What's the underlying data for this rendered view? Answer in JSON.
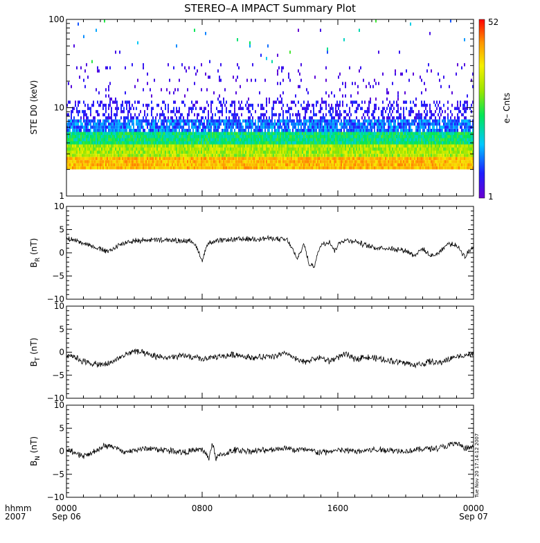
{
  "title": "STEREO–A IMPACT Summary Plot",
  "timestamp": "Tue Nov 20 17:14:12 2007",
  "footer": {
    "left_line1": "hhmm",
    "left_line2": "2007"
  },
  "colors": {
    "line": "#000000",
    "colorbar": [
      "#6a00d0",
      "#1e1eff",
      "#00c8ff",
      "#00e65a",
      "#9be600",
      "#f5f000",
      "#ff9600",
      "#ff0000"
    ]
  },
  "chart_data": [
    {
      "type": "heatmap",
      "ylabel": "STE D0 (keV)",
      "y_scale": "log",
      "ylim": [
        1,
        100
      ],
      "y_ticks": [
        "1",
        "10",
        "100"
      ],
      "colorbar": {
        "label": "e– Cnts",
        "min_label": "1",
        "max_label": "52",
        "range": [
          1,
          52
        ]
      },
      "x_ticks": [
        {
          "hour": 0,
          "line1": "0000",
          "line2": "Sep 06"
        },
        {
          "hour": 8,
          "line1": "0800",
          "line2": ""
        },
        {
          "hour": 16,
          "line1": "1600",
          "line2": ""
        },
        {
          "hour": 24,
          "line1": "0000",
          "line2": "Sep 07"
        }
      ],
      "description_levels": {
        "energy_floor_keV": 2,
        "hot_band_keV": [
          2,
          3
        ],
        "mid_band_keV": [
          3,
          6
        ],
        "sparse_upper_keV": [
          6,
          100
        ]
      }
    },
    {
      "type": "line",
      "ylabel_main": "B",
      "ylabel_sub": "R",
      "ylabel_unit": " (nT)",
      "ylim": [
        -10,
        10
      ],
      "y_ticks": [
        "10",
        "5",
        "0",
        "−5",
        "−10"
      ],
      "x_hours": [
        0,
        0.5,
        1,
        1.5,
        2,
        2.5,
        3,
        3.5,
        4,
        5,
        6,
        7,
        7.5,
        7.8,
        8.0,
        8.3,
        9,
        10,
        11,
        12,
        13,
        13.3,
        13.6,
        14.0,
        14.3,
        14.6,
        15,
        15.5,
        15.8,
        16.2,
        16.6,
        17,
        17.5,
        18,
        19,
        20,
        20.5,
        21,
        21.5,
        22,
        22.5,
        23,
        23.5,
        24
      ],
      "values": [
        3.0,
        2.7,
        2.2,
        1.5,
        0.8,
        0.2,
        1.5,
        2.2,
        2.6,
        2.8,
        2.7,
        2.6,
        2.3,
        0.2,
        -1.8,
        2.0,
        2.6,
        2.9,
        3.0,
        3.1,
        2.8,
        1.0,
        -1.5,
        2.0,
        -2.5,
        -2.8,
        1.8,
        2.5,
        0.5,
        2.6,
        2.7,
        2.5,
        1.8,
        1.2,
        1.0,
        0.5,
        -0.5,
        0.8,
        -0.8,
        0.2,
        2.0,
        1.5,
        -0.8,
        1.5
      ]
    },
    {
      "type": "line",
      "ylabel_main": "B",
      "ylabel_sub": "T",
      "ylabel_unit": " (nT)",
      "ylim": [
        -10,
        10
      ],
      "y_ticks": [
        "10",
        "5",
        "0",
        "−5",
        "−10"
      ],
      "x_hours": [
        0,
        0.5,
        1,
        1.5,
        2,
        2.5,
        3,
        3.5,
        4,
        4.5,
        5,
        6,
        7,
        8,
        9,
        10,
        11,
        12,
        13,
        13.5,
        14,
        14.5,
        15,
        15.5,
        16,
        16.5,
        17,
        17.5,
        18,
        19,
        20,
        20.5,
        21,
        21.5,
        22,
        22.5,
        23,
        23.5,
        24
      ],
      "values": [
        -0.5,
        -1.0,
        -2.0,
        -2.5,
        -2.8,
        -2.5,
        -1.5,
        -0.5,
        0.3,
        -0.2,
        -0.8,
        -1.2,
        -0.8,
        -1.5,
        -1.0,
        -0.5,
        -1.2,
        -1.0,
        -0.3,
        -1.5,
        -2.2,
        -1.5,
        -1.2,
        -2.0,
        -1.0,
        -0.5,
        -1.5,
        -1.0,
        -1.2,
        -1.8,
        -2.3,
        -2.8,
        -2.5,
        -2.0,
        -2.4,
        -1.5,
        -1.0,
        -0.6,
        -0.5
      ]
    },
    {
      "type": "line",
      "ylabel_main": "B",
      "ylabel_sub": "N",
      "ylabel_unit": " (nT)",
      "ylim": [
        -10,
        10
      ],
      "y_ticks": [
        "10",
        "5",
        "0",
        "−5",
        "−10"
      ],
      "x_hours": [
        0,
        0.5,
        1,
        1.5,
        2,
        2.5,
        3,
        3.5,
        4,
        5,
        6,
        7,
        8,
        8.4,
        8.6,
        8.8,
        9,
        10,
        11,
        12,
        13,
        13.5,
        14,
        15,
        16,
        17,
        18,
        19,
        20,
        21,
        22,
        22.5,
        23,
        23.5,
        24
      ],
      "values": [
        0.5,
        -0.5,
        -1.0,
        -0.5,
        0.8,
        1.2,
        0.5,
        -0.3,
        0.3,
        0.6,
        0.2,
        -0.2,
        0.4,
        -1.5,
        1.8,
        -1.5,
        -1.0,
        0.3,
        0.0,
        0.3,
        0.8,
        0.2,
        0.4,
        -0.3,
        0.2,
        0.0,
        0.3,
        0.3,
        0.0,
        0.5,
        0.8,
        1.2,
        1.8,
        0.5,
        1.0
      ]
    }
  ]
}
